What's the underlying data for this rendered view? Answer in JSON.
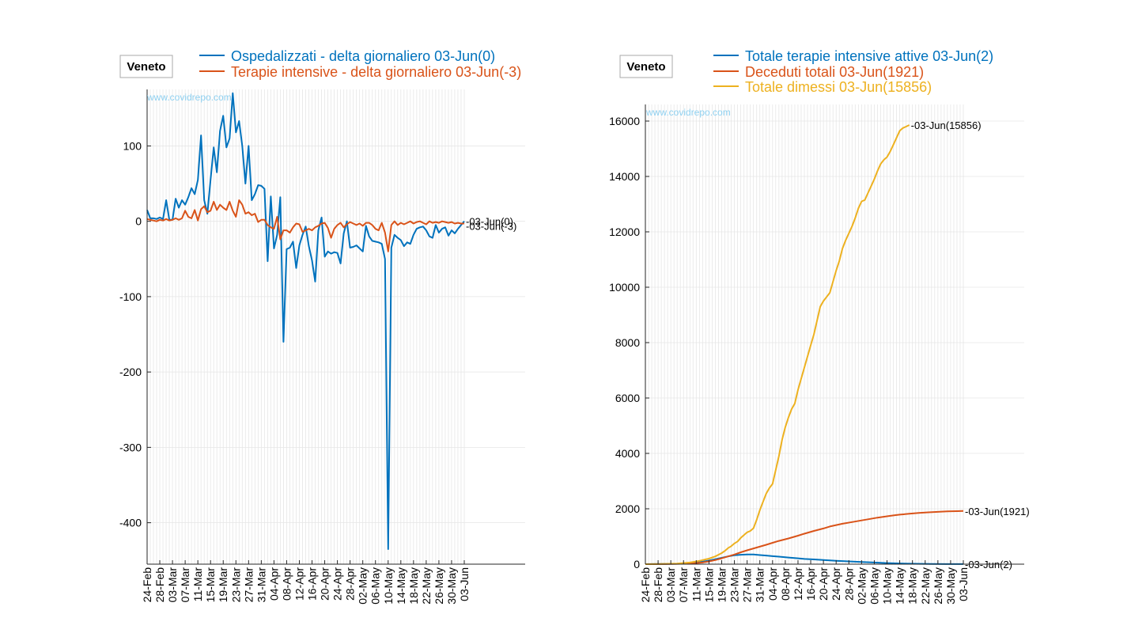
{
  "watermark": "www.covidrepo.com",
  "colors": {
    "blue": "#0072BD",
    "orange": "#D95319",
    "yellow": "#EDB120",
    "watermark": "#8FD0F0",
    "grid": "#e6e6e6",
    "axis": "#262626"
  },
  "chart_data": [
    {
      "type": "line",
      "title": "Veneto",
      "xlabel": "",
      "ylabel": "",
      "x_tick_labels": [
        "24-Feb",
        "28-Feb",
        "03-Mar",
        "07-Mar",
        "11-Mar",
        "15-Mar",
        "19-Mar",
        "23-Mar",
        "27-Mar",
        "31-Mar",
        "04-Apr",
        "08-Apr",
        "12-Apr",
        "16-Apr",
        "20-Apr",
        "24-Apr",
        "28-Apr",
        "02-May",
        "06-May",
        "10-May",
        "14-May",
        "18-May",
        "22-May",
        "26-May",
        "30-May",
        "03-Jun"
      ],
      "xlim": [
        0,
        100
      ],
      "ylim": [
        -455,
        175
      ],
      "y_ticks": [
        -400,
        -300,
        -200,
        -100,
        0,
        100
      ],
      "y_tick_labels": [
        "-400",
        "-300",
        "-200",
        "-100",
        "0",
        "100"
      ],
      "grid": true,
      "legend_position": "top",
      "series": [
        {
          "name": "Ospedalizzati - delta giornaliero 03-Jun(0)",
          "color": "#0072BD",
          "end_label": "-03-Jun(0)",
          "values": [
            15,
            4,
            4,
            3,
            5,
            3,
            28,
            2,
            2,
            30,
            18,
            28,
            22,
            32,
            44,
            36,
            55,
            114,
            28,
            10,
            55,
            98,
            65,
            120,
            140,
            98,
            110,
            170,
            118,
            133,
            100,
            50,
            100,
            28,
            36,
            48,
            47,
            43,
            -53,
            33,
            -36,
            -18,
            32,
            -160,
            -37,
            -35,
            -27,
            -62,
            -32,
            -18,
            -7,
            -33,
            -52,
            -80,
            -12,
            5,
            -47,
            -40,
            -43,
            -41,
            -42,
            -56,
            -16,
            0,
            -35,
            -34,
            -32,
            -36,
            -40,
            -6,
            -20,
            -26,
            -27,
            -28,
            -30,
            -50,
            -435,
            -35,
            -18,
            -22,
            -25,
            -33,
            -28,
            -30,
            -18,
            -10,
            -8,
            -7,
            -12,
            -20,
            -22,
            -5,
            -15,
            -10,
            -8,
            -19,
            -12,
            -16,
            -10,
            -5,
            0
          ]
        },
        {
          "name": "Terapie intensive - delta giornaliero 03-Jun(-3)",
          "color": "#D95319",
          "end_label": "-03-Jun(-3)",
          "values": [
            3,
            2,
            1,
            0,
            2,
            1,
            3,
            1,
            2,
            4,
            2,
            4,
            14,
            6,
            4,
            15,
            1,
            16,
            20,
            12,
            14,
            26,
            15,
            22,
            18,
            15,
            26,
            14,
            6,
            28,
            22,
            10,
            12,
            8,
            10,
            -1,
            2,
            2,
            -5,
            -8,
            -10,
            6,
            -24,
            -12,
            -12,
            -15,
            -8,
            -3,
            -4,
            -14,
            -12,
            -10,
            -12,
            -8,
            -6,
            -3,
            -2,
            -9,
            -22,
            -10,
            -5,
            -2,
            -8,
            -4,
            -1,
            -3,
            -5,
            -3,
            -6,
            -2,
            -2,
            -5,
            -10,
            -12,
            -2,
            -15,
            -40,
            -5,
            0,
            -5,
            -2,
            -4,
            -2,
            0,
            -3,
            -1,
            0,
            -2,
            -4,
            0,
            -2,
            -1,
            -2,
            0,
            -1,
            -2,
            -1,
            -3,
            -2,
            -3,
            -3
          ]
        }
      ]
    },
    {
      "type": "line",
      "title": "Veneto",
      "xlabel": "",
      "ylabel": "",
      "x_tick_labels": [
        "24-Feb",
        "28-Feb",
        "03-Mar",
        "07-Mar",
        "11-Mar",
        "15-Mar",
        "19-Mar",
        "23-Mar",
        "27-Mar",
        "31-Mar",
        "04-Apr",
        "08-Apr",
        "12-Apr",
        "16-Apr",
        "20-Apr",
        "24-Apr",
        "28-Apr",
        "02-May",
        "06-May",
        "10-May",
        "14-May",
        "18-May",
        "22-May",
        "26-May",
        "30-May",
        "03-Jun"
      ],
      "xlim": [
        0,
        100
      ],
      "ylim": [
        0,
        16600
      ],
      "y_ticks": [
        0,
        2000,
        4000,
        6000,
        8000,
        10000,
        12000,
        14000,
        16000
      ],
      "y_tick_labels": [
        "0",
        "2000",
        "4000",
        "6000",
        "8000",
        "10000",
        "12000",
        "14000",
        "16000"
      ],
      "grid": true,
      "legend_position": "top",
      "series": [
        {
          "name": "Totale terapie intensive attive 03-Jun(2)",
          "color": "#0072BD",
          "end_label": "-03-Jun(2)",
          "points": [
            [
              0,
              0
            ],
            [
              5,
              5
            ],
            [
              10,
              15
            ],
            [
              15,
              50
            ],
            [
              18,
              90
            ],
            [
              20,
              130
            ],
            [
              22,
              180
            ],
            [
              24,
              230
            ],
            [
              26,
              280
            ],
            [
              28,
              320
            ],
            [
              30,
              340
            ],
            [
              32,
              350
            ],
            [
              34,
              350
            ],
            [
              36,
              330
            ],
            [
              38,
              310
            ],
            [
              40,
              290
            ],
            [
              42,
              270
            ],
            [
              45,
              240
            ],
            [
              48,
              210
            ],
            [
              50,
              190
            ],
            [
              53,
              170
            ],
            [
              56,
              150
            ],
            [
              60,
              120
            ],
            [
              64,
              100
            ],
            [
              68,
              80
            ],
            [
              72,
              60
            ],
            [
              76,
              40
            ],
            [
              80,
              25
            ],
            [
              85,
              15
            ],
            [
              90,
              8
            ],
            [
              95,
              4
            ],
            [
              100,
              2
            ]
          ]
        },
        {
          "name": "Deceduti totali 03-Jun(1921)",
          "color": "#D95319",
          "end_label": "-03-Jun(1921)",
          "points": [
            [
              0,
              0
            ],
            [
              5,
              2
            ],
            [
              10,
              10
            ],
            [
              15,
              30
            ],
            [
              18,
              60
            ],
            [
              20,
              100
            ],
            [
              22,
              150
            ],
            [
              24,
              210
            ],
            [
              26,
              280
            ],
            [
              28,
              350
            ],
            [
              30,
              430
            ],
            [
              32,
              500
            ],
            [
              35,
              600
            ],
            [
              38,
              700
            ],
            [
              40,
              770
            ],
            [
              42,
              840
            ],
            [
              45,
              930
            ],
            [
              48,
              1030
            ],
            [
              50,
              1100
            ],
            [
              53,
              1200
            ],
            [
              56,
              1290
            ],
            [
              58,
              1360
            ],
            [
              60,
              1410
            ],
            [
              62,
              1460
            ],
            [
              65,
              1520
            ],
            [
              68,
              1580
            ],
            [
              70,
              1620
            ],
            [
              73,
              1680
            ],
            [
              76,
              1730
            ],
            [
              78,
              1760
            ],
            [
              80,
              1790
            ],
            [
              83,
              1820
            ],
            [
              86,
              1850
            ],
            [
              89,
              1870
            ],
            [
              92,
              1890
            ],
            [
              95,
              1905
            ],
            [
              98,
              1915
            ],
            [
              100,
              1921
            ]
          ]
        },
        {
          "name": "Totale dimessi 03-Jun(15856)",
          "color": "#EDB120",
          "end_label": "-03-Jun(15856)",
          "points": [
            [
              0,
              0
            ],
            [
              5,
              5
            ],
            [
              10,
              20
            ],
            [
              14,
              60
            ],
            [
              17,
              120
            ],
            [
              20,
              200
            ],
            [
              22,
              280
            ],
            [
              24,
              400
            ],
            [
              25,
              480
            ],
            [
              26,
              580
            ],
            [
              27,
              650
            ],
            [
              28,
              750
            ],
            [
              29,
              820
            ],
            [
              30,
              950
            ],
            [
              31,
              1050
            ],
            [
              32,
              1150
            ],
            [
              33,
              1200
            ],
            [
              34,
              1300
            ],
            [
              35,
              1600
            ],
            [
              36,
              1950
            ],
            [
              37,
              2250
            ],
            [
              38,
              2550
            ],
            [
              39,
              2750
            ],
            [
              40,
              2900
            ],
            [
              41,
              3400
            ],
            [
              42,
              3900
            ],
            [
              43,
              4500
            ],
            [
              44,
              4950
            ],
            [
              45,
              5300
            ],
            [
              46,
              5600
            ],
            [
              47,
              5800
            ],
            [
              48,
              6300
            ],
            [
              49,
              6700
            ],
            [
              50,
              7100
            ],
            [
              51,
              7500
            ],
            [
              52,
              7900
            ],
            [
              53,
              8300
            ],
            [
              54,
              8800
            ],
            [
              55,
              9300
            ],
            [
              56,
              9500
            ],
            [
              57,
              9650
            ],
            [
              58,
              9800
            ],
            [
              59,
              10200
            ],
            [
              60,
              10600
            ],
            [
              61,
              10950
            ],
            [
              62,
              11400
            ],
            [
              63,
              11700
            ],
            [
              64,
              11950
            ],
            [
              65,
              12200
            ],
            [
              66,
              12500
            ],
            [
              67,
              12850
            ],
            [
              68,
              13100
            ],
            [
              69,
              13150
            ],
            [
              70,
              13400
            ],
            [
              71,
              13650
            ],
            [
              72,
              13900
            ],
            [
              73,
              14200
            ],
            [
              74,
              14450
            ],
            [
              75,
              14600
            ],
            [
              76,
              14700
            ],
            [
              77,
              14900
            ],
            [
              78,
              15150
            ],
            [
              79,
              15400
            ],
            [
              80,
              15650
            ],
            [
              81,
              15750
            ],
            [
              82,
              15800
            ],
            [
              83,
              15856
            ]
          ]
        }
      ]
    }
  ]
}
